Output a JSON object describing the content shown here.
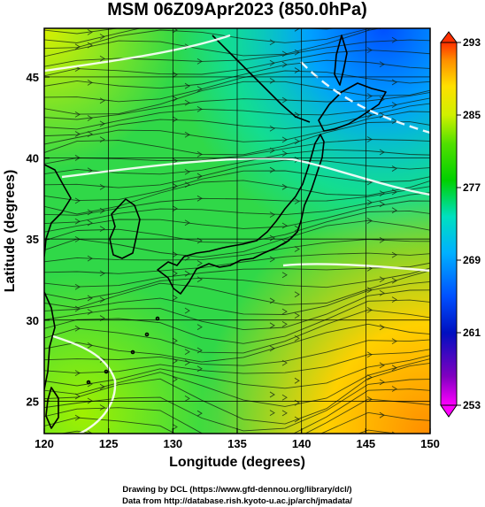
{
  "chart_data": {
    "type": "heatmap",
    "title": "MSM 06Z09Apr2023 (850.0hPa)",
    "xlabel": "Longitude (degrees)",
    "ylabel": "Latitude  (degrees)",
    "xlim": [
      120,
      150
    ],
    "ylim": [
      23,
      48
    ],
    "x_ticks": [
      "120",
      "125",
      "130",
      "135",
      "140",
      "145",
      "150"
    ],
    "y_ticks": [
      "25",
      "30",
      "35",
      "40",
      "45"
    ],
    "grid": true,
    "colorbar": {
      "min": 253,
      "max": 293,
      "ticks": [
        "293",
        "285",
        "277",
        "269",
        "261",
        "253"
      ],
      "colors": [
        "#ff00ff",
        "#0010c0",
        "#0050ff",
        "#00b0ff",
        "#00e0c0",
        "#00d000",
        "#50e000",
        "#d0f000",
        "#ffe000",
        "#ff9000",
        "#ff3000"
      ]
    },
    "overlay": "streamlines"
  },
  "footer": {
    "line1": "Drawing by DCL (https://www.gfd-dennou.org/library/dcl/)",
    "line2": "Data from http://database.rish.kyoto-u.ac.jp/arch/jmadata/"
  }
}
